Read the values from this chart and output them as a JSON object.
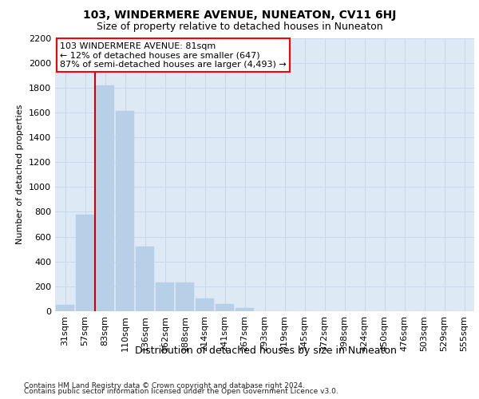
{
  "title": "103, WINDERMERE AVENUE, NUNEATON, CV11 6HJ",
  "subtitle": "Size of property relative to detached houses in Nuneaton",
  "xlabel": "Distribution of detached houses by size in Nuneaton",
  "ylabel": "Number of detached properties",
  "footer_line1": "Contains HM Land Registry data © Crown copyright and database right 2024.",
  "footer_line2": "Contains public sector information licensed under the Open Government Licence v3.0.",
  "categories": [
    "31sqm",
    "57sqm",
    "83sqm",
    "110sqm",
    "136sqm",
    "162sqm",
    "188sqm",
    "214sqm",
    "241sqm",
    "267sqm",
    "293sqm",
    "319sqm",
    "345sqm",
    "372sqm",
    "398sqm",
    "424sqm",
    "450sqm",
    "476sqm",
    "503sqm",
    "529sqm",
    "555sqm"
  ],
  "values": [
    50,
    780,
    1820,
    1610,
    520,
    230,
    230,
    105,
    55,
    25,
    0,
    0,
    0,
    0,
    0,
    0,
    0,
    0,
    0,
    0,
    0
  ],
  "bar_color": "#b8cfe8",
  "bar_edge_color": "#b8cfe8",
  "grid_color": "#c8d8ea",
  "background_color": "#ddeaf6",
  "vline_color": "#cc0000",
  "annotation_text_line1": "103 WINDERMERE AVENUE: 81sqm",
  "annotation_text_line2": "← 12% of detached houses are smaller (647)",
  "annotation_text_line3": "87% of semi-detached houses are larger (4,493) →",
  "ylim": [
    0,
    2200
  ],
  "yticks": [
    0,
    200,
    400,
    600,
    800,
    1000,
    1200,
    1400,
    1600,
    1800,
    2000,
    2200
  ],
  "title_fontsize": 10,
  "subtitle_fontsize": 9,
  "ylabel_fontsize": 8,
  "xlabel_fontsize": 9,
  "ytick_fontsize": 8,
  "xtick_fontsize": 8,
  "annotation_fontsize": 8,
  "footer_fontsize": 6.5
}
